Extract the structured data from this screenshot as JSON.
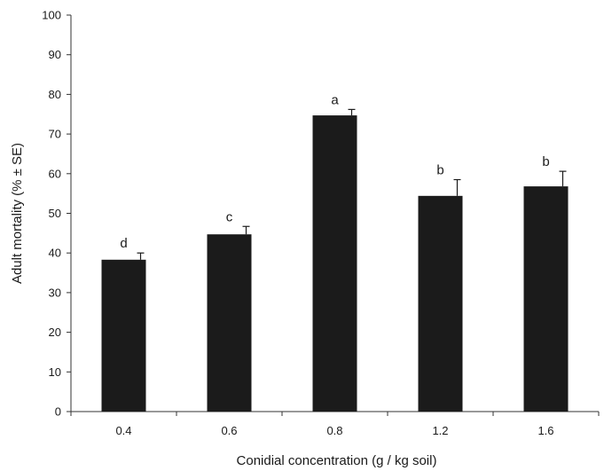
{
  "chart_data": {
    "type": "bar",
    "title": "",
    "xlabel": "Conidial concentration (g / kg soil)",
    "ylabel": "Adult mortality (% ± SE)",
    "ylim": [
      0,
      100
    ],
    "yticks": [
      "0",
      "10",
      "20",
      "30",
      "40",
      "50",
      "60",
      "70",
      "80",
      "90",
      "100"
    ],
    "categories": [
      "0.4",
      "0.6",
      "0.8",
      "1.2",
      "1.6"
    ],
    "values": [
      38.3,
      44.7,
      74.7,
      54.4,
      56.8
    ],
    "errors": [
      1.7,
      2.0,
      1.5,
      4.1,
      3.8
    ],
    "significance_letters": [
      "d",
      "c",
      "a",
      "b",
      "b"
    ],
    "grid": false,
    "legend": "none",
    "colors": {
      "bar": "#1b1b1b",
      "axis": "#333333",
      "text": "#1a1a1a"
    }
  }
}
